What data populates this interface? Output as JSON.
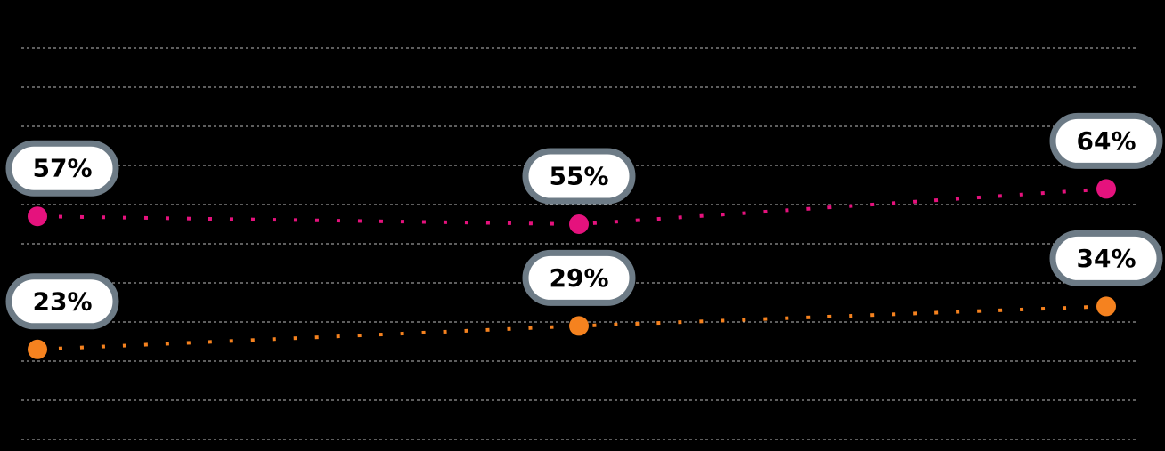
{
  "chart_data": {
    "type": "line",
    "ylim": [
      0,
      100
    ],
    "yticks": [
      0,
      10,
      20,
      30,
      40,
      50,
      60,
      70,
      80,
      90,
      100
    ],
    "grid": true,
    "series": [
      {
        "color": "#e5127d",
        "values": [
          57,
          55,
          64
        ],
        "value_labels": [
          "57%",
          "55%",
          "64%"
        ]
      },
      {
        "color": "#f5821f",
        "values": [
          23,
          29,
          34
        ],
        "value_labels": [
          "23%",
          "29%",
          "34%"
        ]
      }
    ]
  }
}
